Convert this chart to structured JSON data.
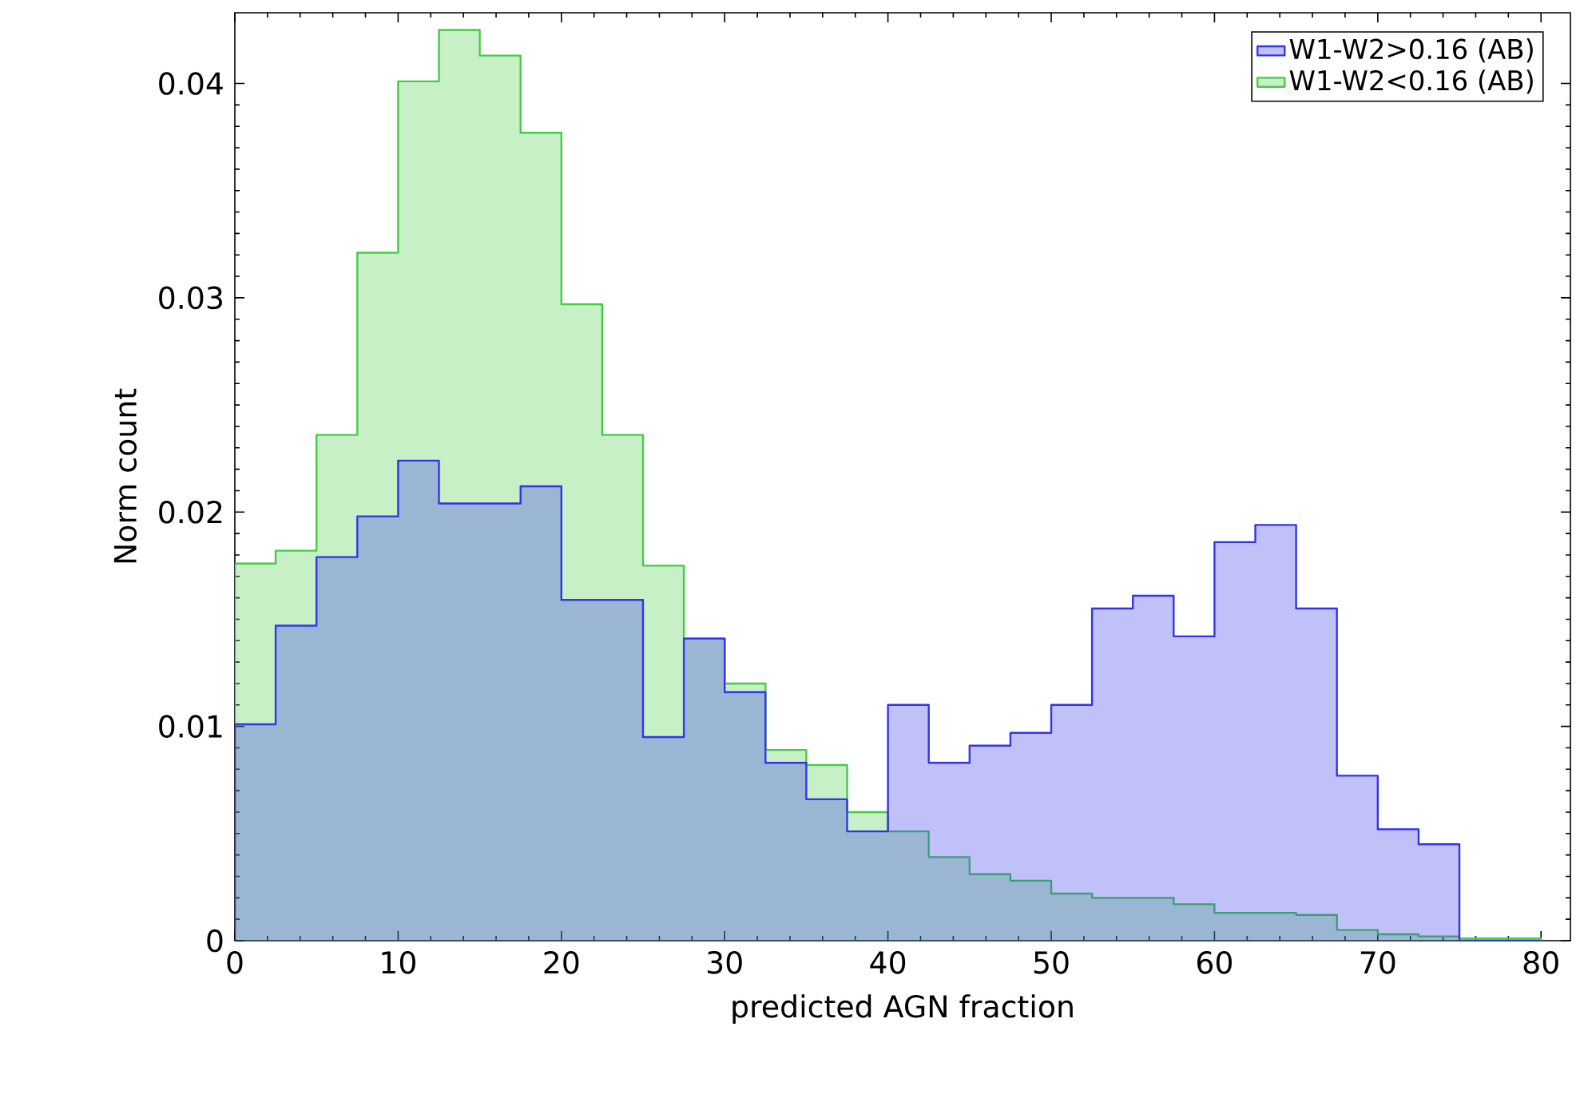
{
  "chart_data": {
    "type": "histogram",
    "xlabel": "predicted AGN fraction",
    "ylabel": "Norm count",
    "bins": [
      0,
      2.5,
      5,
      7.5,
      10,
      12.5,
      15,
      17.5,
      20,
      22.5,
      25,
      27.5,
      30,
      32.5,
      35,
      37.5,
      40,
      42.5,
      45,
      47.5,
      50,
      52.5,
      55,
      57.5,
      60,
      62.5,
      65,
      67.5,
      70,
      72.5,
      75,
      77.5,
      80
    ],
    "series": [
      {
        "name": "W1-W2>0.16 (AB)",
        "color": "#3333ee",
        "values": [
          0.0101,
          0.0147,
          0.0179,
          0.0198,
          0.0224,
          0.0204,
          0.0204,
          0.0212,
          0.0159,
          0.0159,
          0.0095,
          0.0141,
          0.0116,
          0.0083,
          0.0066,
          0.0051,
          0.011,
          0.0083,
          0.0091,
          0.0097,
          0.011,
          0.0155,
          0.0161,
          0.0142,
          0.0186,
          0.0194,
          0.0155,
          0.0077,
          0.0052,
          0.0045,
          0,
          0
        ]
      },
      {
        "name": "W1-W2<0.16 (AB)",
        "color": "#44cc44",
        "values": [
          0.0176,
          0.0182,
          0.0236,
          0.0321,
          0.0401,
          0.0425,
          0.0413,
          0.0377,
          0.0297,
          0.0236,
          0.0175,
          0.0141,
          0.012,
          0.0089,
          0.0082,
          0.006,
          0.0051,
          0.0039,
          0.0031,
          0.0028,
          0.0022,
          0.002,
          0.002,
          0.0017,
          0.0013,
          0.0013,
          0.0012,
          0.0005,
          0.0003,
          0.0002,
          0.0001,
          0.0001
        ]
      }
    ],
    "xlim": [
      0,
      81.8
    ],
    "ylim": [
      0,
      0.0433
    ],
    "xticks": [
      0,
      10,
      20,
      30,
      40,
      50,
      60,
      70,
      80
    ],
    "yticks": [
      0,
      0.01,
      0.02,
      0.03,
      0.04
    ],
    "legend": "top right",
    "grid": false
  }
}
